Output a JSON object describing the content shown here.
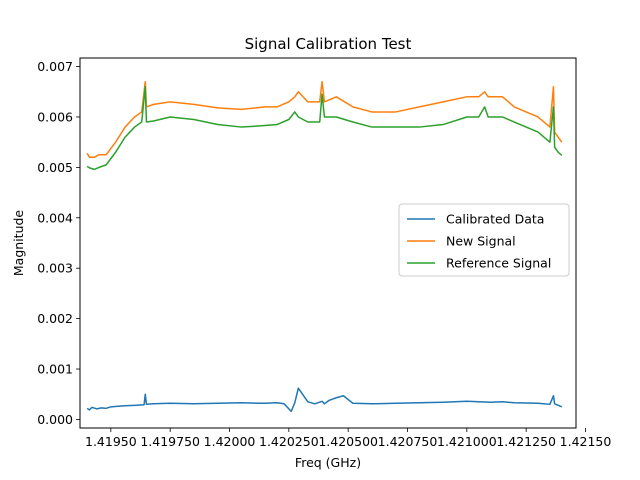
{
  "chart_data": {
    "type": "line",
    "title": "Signal Calibration Test",
    "xlabel": "Freq (GHz)",
    "ylabel": "Magnitude",
    "xlim": [
      1.41937,
      1.42146
    ],
    "ylim": [
      -0.00017,
      0.00717
    ],
    "x_ticks": [
      1.4195,
      1.41975,
      1.42,
      1.42025,
      1.4205,
      1.42075,
      1.421,
      1.42125,
      1.4215
    ],
    "x_tick_labels": [
      "1.41950",
      "1.419750",
      "1.42000",
      "1.420250",
      "1.420500",
      "1.420750",
      "1.421000",
      "1.421250",
      "1.42150"
    ],
    "y_ticks": [
      0.0,
      0.001,
      0.002,
      0.003,
      0.004,
      0.005,
      0.006,
      0.007
    ],
    "y_tick_labels": [
      "0.000",
      "0.001",
      "0.002",
      "0.003",
      "0.004",
      "0.005",
      "0.006",
      "0.007"
    ],
    "grid": false,
    "legend_position": "center-right",
    "series": [
      {
        "name": "Calibrated Data",
        "color": "#1f77b4",
        "x": [
          1.4194,
          1.41941,
          1.41942,
          1.41944,
          1.41946,
          1.41948,
          1.4195,
          1.41955,
          1.4196,
          1.41964,
          1.419645,
          1.41965,
          1.41968,
          1.41975,
          1.41985,
          1.41995,
          1.42005,
          1.42015,
          1.4202,
          1.42023,
          1.42026,
          1.420275,
          1.42029,
          1.42033,
          1.42036,
          1.42039,
          1.4204,
          1.42042,
          1.42045,
          1.42048,
          1.42052,
          1.4206,
          1.4207,
          1.4208,
          1.4209,
          1.421,
          1.4211,
          1.42115,
          1.4212,
          1.4213,
          1.42135,
          1.421365,
          1.42137,
          1.421385,
          1.4214
        ],
        "values": [
          0.00022,
          0.00019,
          0.00024,
          0.00021,
          0.00023,
          0.00022,
          0.00025,
          0.00027,
          0.00028,
          0.00029,
          0.0005,
          0.0003,
          0.00031,
          0.00032,
          0.00031,
          0.00032,
          0.00033,
          0.00032,
          0.00033,
          0.00031,
          0.00016,
          0.00033,
          0.00062,
          0.00035,
          0.00031,
          0.00036,
          0.00031,
          0.00038,
          0.00043,
          0.00047,
          0.00032,
          0.00031,
          0.00032,
          0.00033,
          0.00034,
          0.00036,
          0.00034,
          0.00035,
          0.00033,
          0.00032,
          0.0003,
          0.00047,
          0.00031,
          0.00028,
          0.00025
        ]
      },
      {
        "name": "New Signal",
        "color": "#ff7f0e",
        "x": [
          1.4194,
          1.41941,
          1.41943,
          1.41945,
          1.41948,
          1.41952,
          1.41956,
          1.4196,
          1.41963,
          1.419645,
          1.41965,
          1.41968,
          1.41975,
          1.41985,
          1.41995,
          1.42005,
          1.42015,
          1.4202,
          1.42025,
          1.420275,
          1.42029,
          1.42033,
          1.42038,
          1.42039,
          1.4204,
          1.42045,
          1.42052,
          1.4206,
          1.4207,
          1.4208,
          1.4209,
          1.421,
          1.42105,
          1.421075,
          1.42109,
          1.42115,
          1.4212,
          1.4213,
          1.42135,
          1.421365,
          1.42137,
          1.421385,
          1.4214
        ],
        "values": [
          0.00528,
          0.0052,
          0.0052,
          0.00525,
          0.00525,
          0.0055,
          0.0058,
          0.006,
          0.0061,
          0.0067,
          0.0062,
          0.00625,
          0.0063,
          0.00625,
          0.00618,
          0.00615,
          0.0062,
          0.0062,
          0.0063,
          0.0064,
          0.0065,
          0.0063,
          0.0063,
          0.0067,
          0.0063,
          0.0064,
          0.0062,
          0.0061,
          0.0061,
          0.0062,
          0.0063,
          0.0064,
          0.0064,
          0.0065,
          0.0064,
          0.0064,
          0.0062,
          0.006,
          0.0058,
          0.0066,
          0.0057,
          0.0056,
          0.0055
        ]
      },
      {
        "name": "Reference Signal",
        "color": "#2ca02c",
        "x": [
          1.4194,
          1.41941,
          1.41943,
          1.41945,
          1.41948,
          1.41952,
          1.41956,
          1.4196,
          1.41963,
          1.419645,
          1.41965,
          1.41968,
          1.41975,
          1.41985,
          1.41995,
          1.42005,
          1.42015,
          1.4202,
          1.42025,
          1.420275,
          1.42029,
          1.42033,
          1.42038,
          1.42039,
          1.4204,
          1.42045,
          1.42052,
          1.4206,
          1.4207,
          1.4208,
          1.4209,
          1.421,
          1.42105,
          1.421075,
          1.42109,
          1.42115,
          1.4212,
          1.4213,
          1.42135,
          1.421365,
          1.42137,
          1.421385,
          1.4214
        ],
        "values": [
          0.00502,
          0.00499,
          0.00496,
          0.005,
          0.00505,
          0.0053,
          0.0056,
          0.0058,
          0.0059,
          0.0066,
          0.0059,
          0.00592,
          0.006,
          0.00595,
          0.00585,
          0.0058,
          0.00583,
          0.00585,
          0.00595,
          0.0061,
          0.006,
          0.0059,
          0.0059,
          0.00645,
          0.006,
          0.006,
          0.0059,
          0.0058,
          0.0058,
          0.0058,
          0.00585,
          0.006,
          0.006,
          0.0062,
          0.006,
          0.006,
          0.0059,
          0.0057,
          0.0055,
          0.0062,
          0.0054,
          0.0053,
          0.00524
        ]
      }
    ]
  }
}
